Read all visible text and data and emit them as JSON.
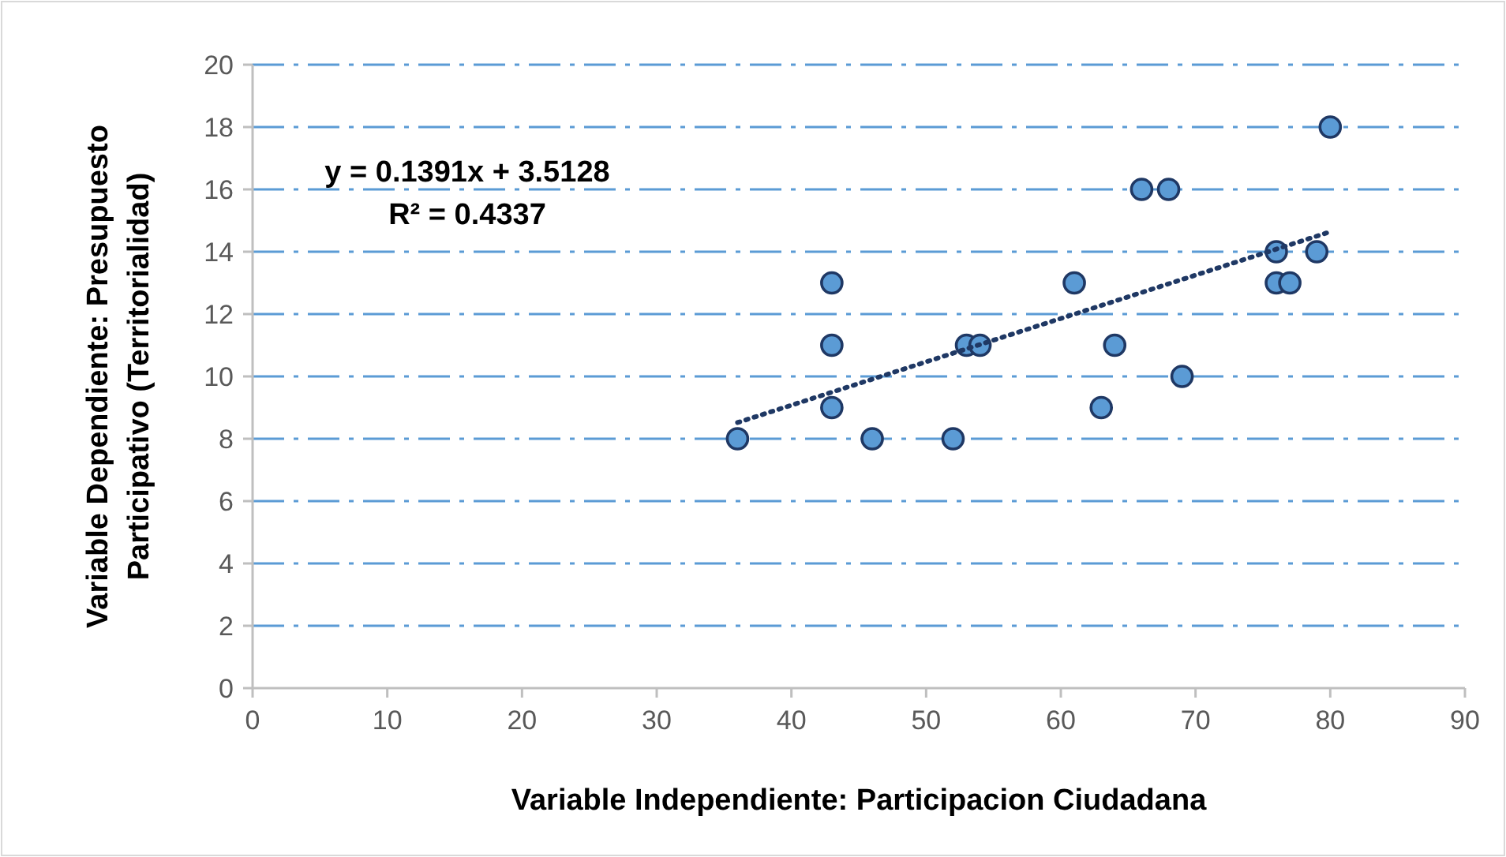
{
  "chart_data": {
    "type": "scatter",
    "xlabel": "Variable Independiente: Participacion Ciudadana",
    "ylabel": "Variable Dependiente: Presupuesto\nParticipativo (Territorialidad)",
    "xlim": [
      0,
      90
    ],
    "xticks": [
      0,
      10,
      20,
      30,
      40,
      50,
      60,
      70,
      80,
      90
    ],
    "ylim": [
      0,
      20
    ],
    "yticks": [
      0,
      2,
      4,
      6,
      8,
      10,
      12,
      14,
      16,
      18,
      20
    ],
    "grid": "y",
    "series": [
      {
        "color": "#5b9bd5",
        "marker": "circle",
        "x": [
          36,
          43,
          43,
          43,
          46,
          52,
          53,
          54,
          61,
          63,
          64,
          66,
          68,
          69,
          76,
          76,
          77,
          79,
          80
        ],
        "values": [
          8,
          13,
          11,
          9,
          8,
          8,
          11,
          11,
          13,
          9,
          11,
          16,
          16,
          10,
          14,
          13,
          13,
          14,
          18
        ]
      },
      {
        "type": "line",
        "color": "#1f3864",
        "line_style": "dotted",
        "x": [
          36,
          80
        ],
        "values": [
          8.52,
          14.64
        ]
      }
    ],
    "annotations": [
      "y = 0.1391x + 3.5128",
      "R² = 0.4337"
    ]
  }
}
